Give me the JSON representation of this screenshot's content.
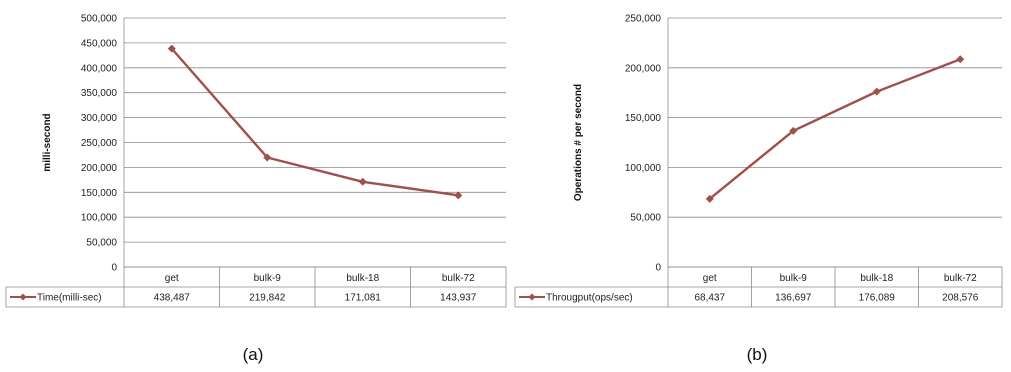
{
  "colors": {
    "series": "#A0504B",
    "grid": "#8C8C8C",
    "table_border": "#8C8C8C",
    "text": "#222222",
    "background": "#FFFFFF"
  },
  "chart_data": [
    {
      "type": "line",
      "caption": "(a)",
      "ylabel": "milli-second",
      "xlabel": "",
      "categories": [
        "get",
        "bulk-9",
        "bulk-18",
        "bulk-72"
      ],
      "series": [
        {
          "name": "Time(milli-sec)",
          "values": [
            438487,
            219842,
            171081,
            143937
          ],
          "value_labels": [
            "438,487",
            "219,842",
            "171,081",
            "143,937"
          ]
        }
      ],
      "ylim": [
        0,
        500000
      ],
      "yticks": [
        0,
        50000,
        100000,
        150000,
        200000,
        250000,
        300000,
        350000,
        400000,
        450000,
        500000
      ],
      "ytick_labels": [
        "0",
        "50,000",
        "100,000",
        "150,000",
        "200,000",
        "250,000",
        "300,000",
        "350,000",
        "400,000",
        "450,000",
        "500,000"
      ],
      "grid": true,
      "legend": "data-table"
    },
    {
      "type": "line",
      "caption": "(b)",
      "ylabel": "Operations # per second",
      "xlabel": "",
      "categories": [
        "get",
        "bulk-9",
        "bulk-18",
        "bulk-72"
      ],
      "series": [
        {
          "name": "Througput(ops/sec)",
          "values": [
            68437,
            136697,
            176089,
            208576
          ],
          "value_labels": [
            "68,437",
            "136,697",
            "176,089",
            "208,576"
          ]
        }
      ],
      "ylim": [
        0,
        250000
      ],
      "yticks": [
        0,
        50000,
        100000,
        150000,
        200000,
        250000
      ],
      "ytick_labels": [
        "0",
        "50,000",
        "100,000",
        "150,000",
        "200,000",
        "250,000"
      ],
      "grid": true,
      "legend": "data-table"
    }
  ]
}
